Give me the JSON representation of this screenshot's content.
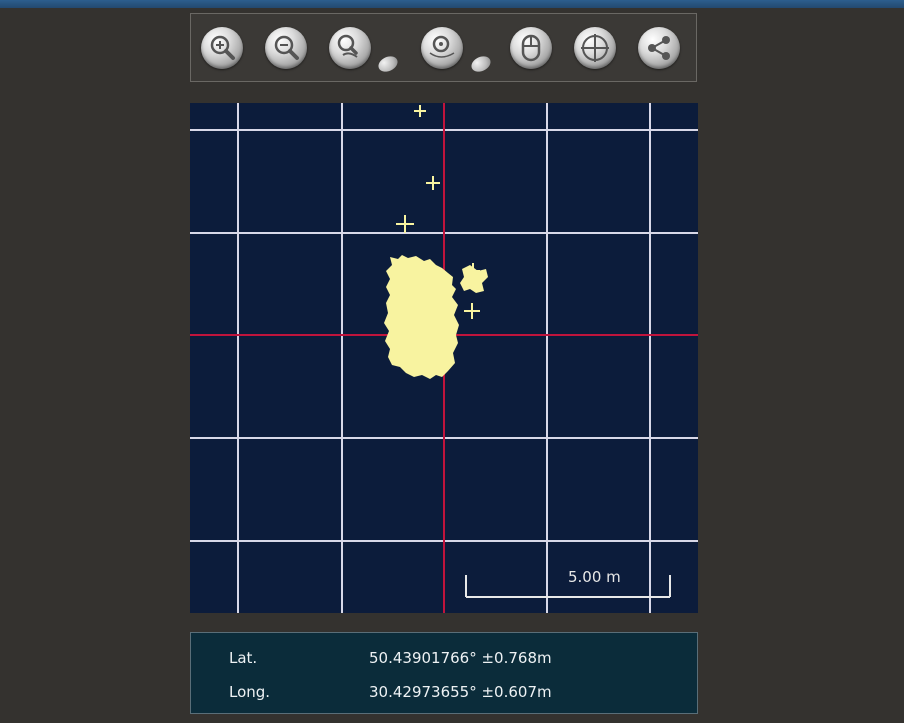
{
  "toolbar": {
    "tools": [
      {
        "name": "zoom-in-icon"
      },
      {
        "name": "zoom-out-icon"
      },
      {
        "name": "zoom-to-selection-icon"
      },
      {
        "name": "zoom-to-location-icon"
      },
      {
        "name": "mouse-icon"
      },
      {
        "name": "crosshair-icon"
      },
      {
        "name": "share-icon"
      }
    ]
  },
  "map": {
    "scale_label": "5.00 m",
    "colors": {
      "background": "#0c1c3b",
      "grid": "#d8d8e8",
      "crosshair": "#c0143c",
      "points": "#f8f3a0"
    }
  },
  "coordinates": {
    "lat_label": "Lat.",
    "lat_value": "50.43901766° ±0.768m",
    "long_label": "Long.",
    "long_value": "30.42973655° ±0.607m"
  }
}
